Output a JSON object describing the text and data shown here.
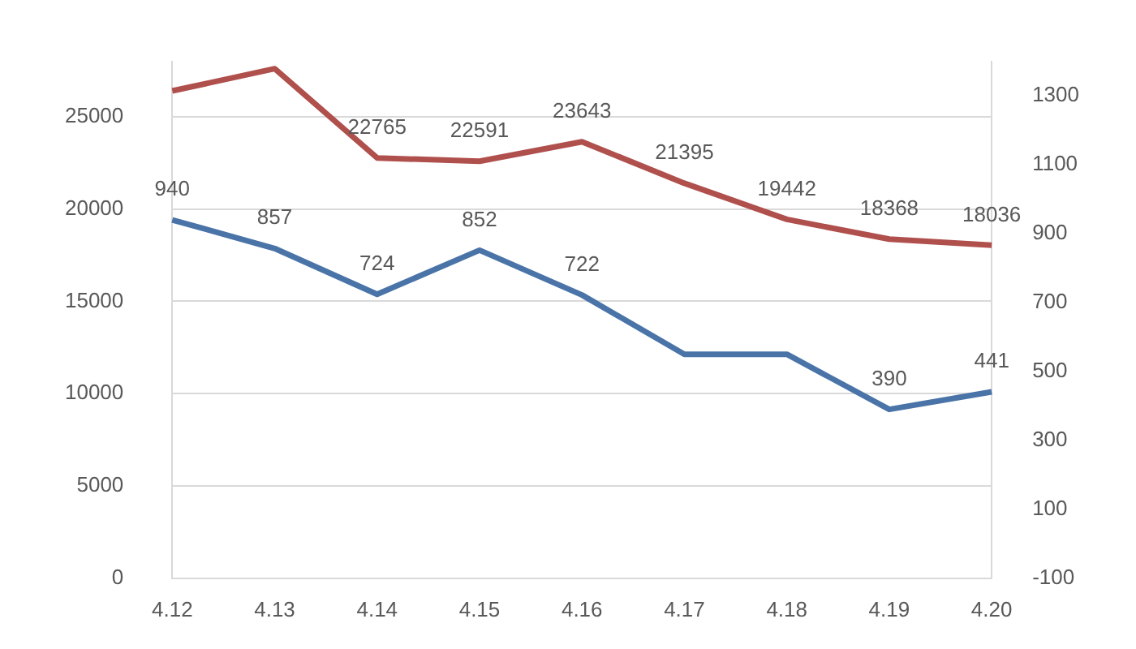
{
  "chart_data": {
    "type": "line",
    "categories": [
      "4.12",
      "4.13",
      "4.14",
      "4.15",
      "4.16",
      "4.17",
      "4.18",
      "4.19",
      "4.20"
    ],
    "series": [
      {
        "color": "#b0504d",
        "values": [
          26400,
          27600,
          22765,
          22591,
          23643,
          21395,
          19442,
          18368,
          18036
        ],
        "value_labels": [
          null,
          null,
          "22765",
          "22591",
          "23643",
          "21395",
          "19442",
          "18368",
          "18036"
        ]
      },
      {
        "color": "#4a74a8",
        "axis": "y2",
        "values": [
          940,
          857,
          724,
          852,
          722,
          550,
          550,
          390,
          441
        ],
        "value_labels": [
          "940",
          "857",
          "724",
          "852",
          "722",
          null,
          null,
          "390",
          "441"
        ]
      }
    ],
    "ylim": [
      0,
      28000
    ],
    "yticks": [
      0,
      5000,
      10000,
      15000,
      20000,
      25000
    ],
    "y2lim": [
      -100,
      1400
    ],
    "y2ticks": [
      -100,
      100,
      300,
      500,
      700,
      900,
      1100,
      1300
    ],
    "grid": "y",
    "legend": false,
    "marker": "none",
    "line_style": "solid"
  }
}
